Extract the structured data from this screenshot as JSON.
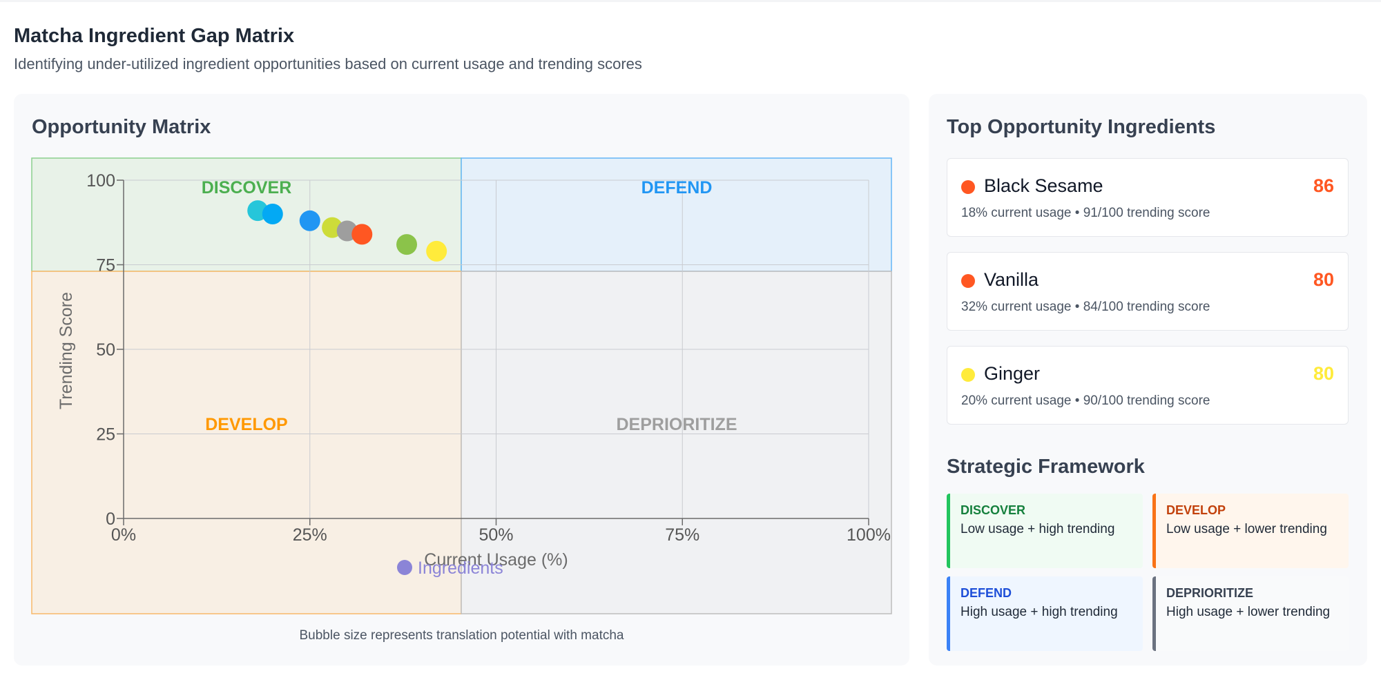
{
  "header": {
    "title": "Matcha Ingredient Gap Matrix",
    "subtitle": "Identifying under-utilized ingredient opportunities based on current usage and trending scores"
  },
  "matrix_card": {
    "title": "Opportunity Matrix",
    "caption": "Bubble size represents translation potential with matcha"
  },
  "chart_data": {
    "type": "scatter",
    "xlabel": "Current Usage (%)",
    "ylabel": "Trending Score",
    "xlim": [
      0,
      100
    ],
    "ylim": [
      0,
      100
    ],
    "xticks": [
      "0%",
      "25%",
      "50%",
      "75%",
      "100%"
    ],
    "yticks": [
      "0",
      "25",
      "50",
      "75",
      "100"
    ],
    "grid": true,
    "legend": {
      "position": "bottom-center",
      "label": "Ingredients",
      "color": "#8b84d7"
    },
    "quadrants": [
      {
        "name": "DISCOVER",
        "color": "#4caf50",
        "fill": "#e8f2e8",
        "border": "#8bcf8e"
      },
      {
        "name": "DEFEND",
        "color": "#2196f3",
        "fill": "#e5f0fa",
        "border": "#64b5f6"
      },
      {
        "name": "DEVELOP",
        "color": "#ff9800",
        "fill": "#f8efe4",
        "border": "#f8b869"
      },
      {
        "name": "DEPRIORITIZE",
        "color": "#9e9e9e",
        "fill": "#f0f1f3",
        "border": "#bdbdbd"
      }
    ],
    "points": [
      {
        "x": 18,
        "y": 91,
        "color": "#26c6da"
      },
      {
        "x": 20,
        "y": 90,
        "color": "#03a9f4"
      },
      {
        "x": 25,
        "y": 88,
        "color": "#2196f3"
      },
      {
        "x": 28,
        "y": 86,
        "color": "#cddc39"
      },
      {
        "x": 30,
        "y": 85,
        "color": "#9e9e9e"
      },
      {
        "x": 32,
        "y": 84,
        "color": "#ff5722"
      },
      {
        "x": 38,
        "y": 81,
        "color": "#8bc34a"
      },
      {
        "x": 42,
        "y": 79,
        "color": "#ffeb3b"
      }
    ]
  },
  "opportunities": {
    "title": "Top Opportunity Ingredients",
    "items": [
      {
        "name": "Black Sesame",
        "score": "86",
        "meta": "18% current usage • 91/100 trending score",
        "color": "#ff5722"
      },
      {
        "name": "Vanilla",
        "score": "80",
        "meta": "32% current usage • 84/100 trending score",
        "color": "#ff5722"
      },
      {
        "name": "Ginger",
        "score": "80",
        "meta": "20% current usage • 90/100 trending score",
        "color": "#ffeb3b"
      }
    ]
  },
  "framework": {
    "title": "Strategic Framework",
    "items": [
      {
        "name": "DISCOVER",
        "desc": "Low usage + high trending",
        "name_color": "#15803d",
        "bg": "#f0fbf3",
        "border": "#22c55e"
      },
      {
        "name": "DEVELOP",
        "desc": "Low usage + lower trending",
        "name_color": "#c2410c",
        "bg": "#fff6ed",
        "border": "#f97316"
      },
      {
        "name": "DEFEND",
        "desc": "High usage + high trending",
        "name_color": "#1d4ed8",
        "bg": "#eff6ff",
        "border": "#3b82f6"
      },
      {
        "name": "DEPRIORITIZE",
        "desc": "High usage + lower trending",
        "name_color": "#374151",
        "bg": "#f9fafb",
        "border": "#6b7280"
      }
    ]
  }
}
